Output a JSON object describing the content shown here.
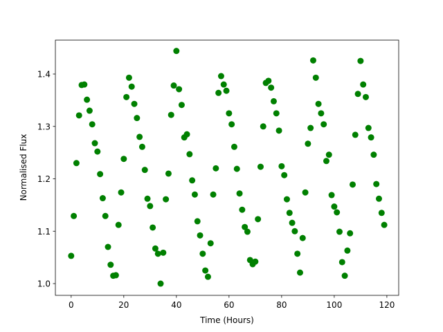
{
  "chart_data": {
    "type": "scatter",
    "x_label": "Time (Hours)",
    "y_label": "Normalised Flux",
    "color": "#008000",
    "x": [
      0,
      1,
      2,
      3,
      4,
      5,
      6,
      7,
      8,
      9,
      10,
      11,
      12,
      13,
      14,
      15,
      16,
      17,
      18,
      19,
      20,
      21,
      22,
      23,
      24,
      25,
      26,
      27,
      28,
      29,
      30,
      31,
      32,
      33,
      34,
      35,
      36,
      37,
      38,
      39,
      40,
      41,
      42,
      43,
      44,
      45,
      46,
      47,
      48,
      49,
      50,
      51,
      52,
      53,
      54,
      55,
      56,
      57,
      58,
      59,
      60,
      61,
      62,
      63,
      64,
      65,
      66,
      67,
      68,
      69,
      70,
      71,
      72,
      73,
      74,
      75,
      76,
      77,
      78,
      79,
      80,
      81,
      82,
      83,
      84,
      85,
      86,
      87,
      88,
      89,
      90,
      91,
      92,
      93,
      94,
      95,
      96,
      97,
      98,
      99,
      100,
      101,
      102,
      103,
      104,
      105,
      106,
      107,
      108,
      109,
      110,
      111,
      112,
      113,
      114,
      115,
      116,
      117,
      118,
      119
    ],
    "values": [
      1.053,
      1.129,
      1.23,
      1.321,
      1.379,
      1.38,
      1.351,
      1.33,
      1.304,
      1.268,
      1.252,
      1.209,
      1.163,
      1.129,
      1.07,
      1.036,
      1.015,
      1.016,
      1.112,
      1.174,
      1.238,
      1.356,
      1.393,
      1.376,
      1.343,
      1.316,
      1.28,
      1.261,
      1.217,
      1.162,
      1.148,
      1.107,
      1.067,
      1.057,
      1.0,
      1.059,
      1.161,
      1.21,
      1.322,
      1.378,
      1.444,
      1.371,
      1.341,
      1.279,
      1.285,
      1.247,
      1.197,
      1.17,
      1.119,
      1.092,
      1.057,
      1.025,
      1.013,
      1.077,
      1.17,
      1.22,
      1.364,
      1.396,
      1.38,
      1.368,
      1.325,
      1.304,
      1.261,
      1.219,
      1.172,
      1.141,
      1.108,
      1.099,
      1.045,
      1.037,
      1.042,
      1.123,
      1.223,
      1.3,
      1.383,
      1.387,
      1.374,
      1.348,
      1.325,
      1.292,
      1.224,
      1.207,
      1.161,
      1.135,
      1.116,
      1.1,
      1.057,
      1.021,
      1.087,
      1.174,
      1.267,
      1.297,
      1.426,
      1.393,
      1.343,
      1.325,
      1.304,
      1.234,
      1.246,
      1.169,
      1.147,
      1.136,
      1.099,
      1.041,
      1.015,
      1.063,
      1.096,
      1.189,
      1.284,
      1.362,
      1.425,
      1.38,
      1.356,
      1.297,
      1.279,
      1.246,
      1.19,
      1.162,
      1.135,
      1.112
    ],
    "xlim": [
      -6,
      124.5
    ],
    "xticks": [
      0,
      20,
      40,
      60,
      80,
      100,
      120
    ],
    "ylim": [
      0.9776,
      1.4647
    ],
    "yticks": [
      {
        "value": 1,
        "label": "1.0"
      },
      1.1,
      1.2,
      1.3,
      1.4
    ],
    "grid": false
  }
}
